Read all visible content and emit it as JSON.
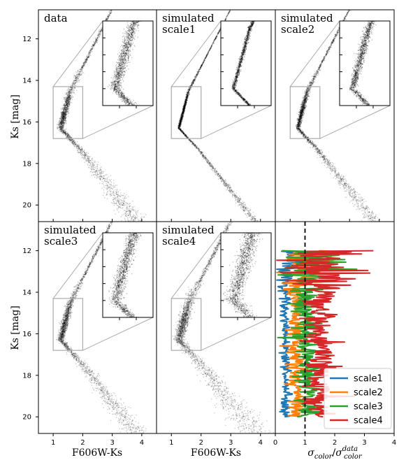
{
  "chart_data": [
    {
      "type": "scatter",
      "panel": "data",
      "label_lines": [
        "data"
      ],
      "xlabel": "",
      "ylabel": "Ks [mag]",
      "xlim": [
        0.5,
        4.5
      ],
      "ylim": [
        20.8,
        10.6
      ],
      "yticks": [
        12,
        14,
        16,
        18,
        20
      ],
      "inset_region": {
        "x": [
          1.0,
          2.0
        ],
        "y": [
          14.3,
          16.8
        ]
      },
      "spread": 1.0
    },
    {
      "type": "scatter",
      "panel": "simulated scale1",
      "label_lines": [
        "simulated",
        "scale1"
      ],
      "xlabel": "",
      "ylabel": "",
      "xlim": [
        0.5,
        4.5
      ],
      "ylim": [
        20.8,
        10.6
      ],
      "inset_region": {
        "x": [
          1.0,
          2.0
        ],
        "y": [
          14.3,
          16.8
        ]
      },
      "spread": 0.35
    },
    {
      "type": "scatter",
      "panel": "simulated scale2",
      "label_lines": [
        "simulated",
        "scale2"
      ],
      "xlabel": "",
      "ylabel": "",
      "xlim": [
        0.5,
        4.5
      ],
      "ylim": [
        20.8,
        10.6
      ],
      "inset_region": {
        "x": [
          1.0,
          2.0
        ],
        "y": [
          14.3,
          16.8
        ]
      },
      "spread": 0.7
    },
    {
      "type": "scatter",
      "panel": "simulated scale3",
      "label_lines": [
        "simulated",
        "scale3"
      ],
      "xlabel": "",
      "ylabel": "Ks [mag]",
      "xlim": [
        0.5,
        4.5
      ],
      "ylim": [
        20.8,
        10.6
      ],
      "yticks": [
        12,
        14,
        16,
        18,
        20
      ],
      "inset_region": {
        "x": [
          1.0,
          2.0
        ],
        "y": [
          14.3,
          16.8
        ]
      },
      "spread": 1.05
    },
    {
      "type": "scatter",
      "panel": "simulated scale4",
      "label_lines": [
        "simulated",
        "scale4"
      ],
      "xlabel": "F606W-Ks",
      "ylabel": "",
      "xlim": [
        0.5,
        4.5
      ],
      "ylim": [
        20.8,
        10.6
      ],
      "inset_region": {
        "x": [
          1.0,
          2.0
        ],
        "y": [
          14.3,
          16.8
        ]
      },
      "spread": 1.5
    },
    {
      "type": "line",
      "panel": "color spread ratio",
      "xlabel": "σ_color/σ_color^data",
      "ylabel": "",
      "xlim": [
        0,
        4
      ],
      "ylim": [
        20.8,
        10.6
      ],
      "xticks": [
        0,
        1,
        2,
        3,
        4
      ],
      "reference_line_x": 1,
      "legend": "bottom-right",
      "series": [
        {
          "name": "scale1",
          "color": "#1f77b4",
          "mean": 0.35
        },
        {
          "name": "scale2",
          "color": "#ff7f0e",
          "mean": 0.7
        },
        {
          "name": "scale3",
          "color": "#2ca02c",
          "mean": 1.05
        },
        {
          "name": "scale4",
          "color": "#d62728",
          "mean": 1.5
        }
      ]
    }
  ],
  "shared": {
    "ylabel": "Ks [mag]",
    "xlabel": "F606W-Ks",
    "xticks": [
      1,
      2,
      3,
      4
    ],
    "yticks": [
      12,
      14,
      16,
      18,
      20
    ],
    "ratio_xlabel_main": "σ",
    "ratio_xlabel_sub": "color",
    "ratio_xlabel_sup": "data"
  }
}
